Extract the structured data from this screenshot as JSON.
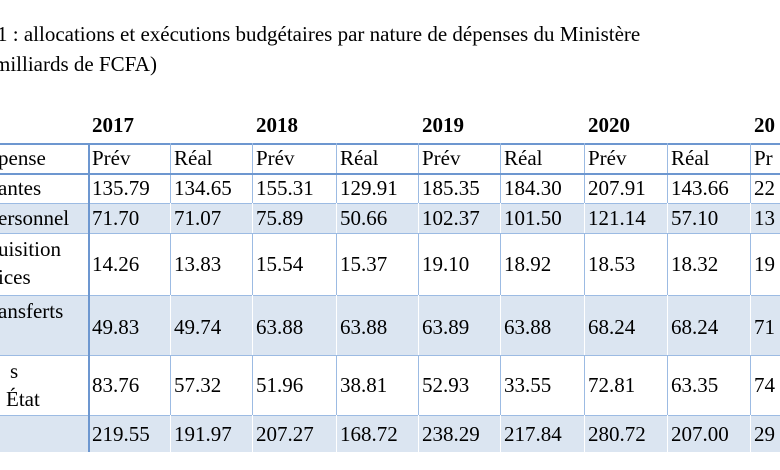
{
  "title": {
    "lines": [
      "1 : allocations et exécutions budgétaires par nature de dépenses du Ministère",
      "milliards de FCFA)"
    ]
  },
  "table": {
    "years": [
      "2017",
      "2018",
      "2019",
      "2020",
      "20"
    ],
    "header": {
      "label": [
        "pense"
      ],
      "cells": [
        "Prév",
        "Réal",
        "Prév",
        "Réal",
        "Prév",
        "Réal",
        "Prév",
        "Réal",
        "Pr"
      ]
    },
    "rows": [
      {
        "label": [
          "antes"
        ],
        "cells": [
          "135.79",
          "134.65",
          "155.31",
          "129.91",
          "185.35",
          "184.30",
          "207.91",
          "143.66",
          "22"
        ]
      },
      {
        "label": [
          "ersonnel"
        ],
        "cells": [
          "71.70",
          "71.07",
          "75.89",
          "50.66",
          "102.37",
          "101.50",
          "121.14",
          "57.10",
          "13"
        ]
      },
      {
        "label": [
          "uisition",
          "ices"
        ],
        "cells": [
          "14.26",
          "13.83",
          "15.54",
          "15.37",
          "19.10",
          "18.92",
          "18.53",
          "18.32",
          "19"
        ]
      },
      {
        "label": [
          "ansferts"
        ],
        "cells": [
          "49.83",
          "49.74",
          "63.88",
          "63.88",
          "63.89",
          "63.88",
          "68.24",
          "68.24",
          "71"
        ]
      },
      {
        "label": [
          "s",
          "État"
        ],
        "cells": [
          "83.76",
          "57.32",
          "51.96",
          "38.81",
          "52.93",
          "33.55",
          "72.81",
          "63.35",
          "74"
        ]
      },
      {
        "label": [],
        "cells": [
          "219.55",
          "191.97",
          "207.27",
          "168.72",
          "238.29",
          "217.84",
          "280.72",
          "207.00",
          "29"
        ]
      }
    ]
  }
}
